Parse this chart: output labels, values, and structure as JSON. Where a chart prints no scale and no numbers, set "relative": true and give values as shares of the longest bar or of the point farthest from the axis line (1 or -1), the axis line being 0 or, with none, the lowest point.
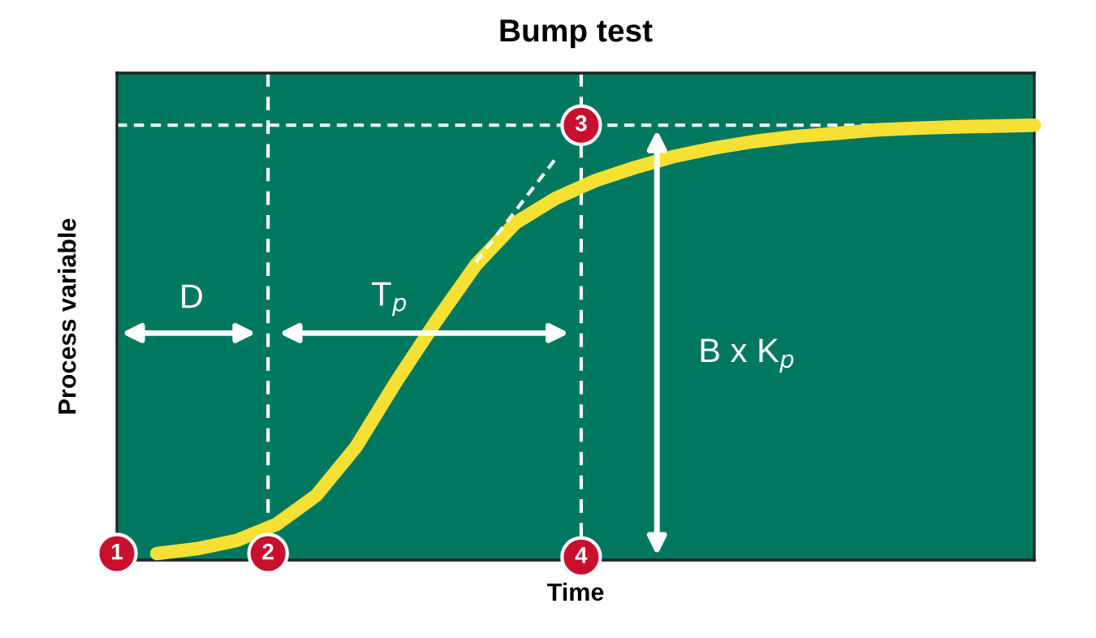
{
  "chart_data": {
    "type": "line",
    "title": "Bump test",
    "xlabel": "Time",
    "ylabel": "Process variable",
    "relative": true,
    "categories": [
      null,
      null,
      null,
      null,
      null,
      null,
      null,
      null,
      null,
      null,
      null,
      null,
      null,
      null,
      null,
      null,
      null,
      null,
      null,
      null,
      null,
      null,
      null,
      null
    ],
    "series": [
      {
        "color": "#f7e034",
        "values": [
          null,
          0.015,
          0.026,
          0.045,
          0.082,
          0.149,
          0.261,
          0.41,
          0.549,
          0.679,
          0.776,
          0.832,
          0.873,
          0.903,
          0.929,
          0.948,
          0.963,
          0.974,
          0.981,
          0.989,
          0.993,
          0.996,
          0.998,
          1.0
        ]
      },
      {
        "type": "line",
        "line_style": "dashed",
        "color": "#ffffff",
        "values": [
          null,
          null,
          null,
          null,
          null,
          null,
          null,
          null,
          null,
          0.685,
          0.804,
          0.923,
          null,
          null,
          null,
          null,
          null,
          null,
          null,
          null,
          null,
          null,
          null,
          null
        ]
      }
    ],
    "ref_lines": [
      {
        "axis": "y",
        "value": 1.0,
        "color": "#ffffff",
        "line_style": "dashed"
      }
    ],
    "annotations": [
      "D",
      "T$_{p}$",
      "B x K$_{p}$",
      "1",
      "2",
      "3",
      "4"
    ],
    "tick_labels": false
  }
}
